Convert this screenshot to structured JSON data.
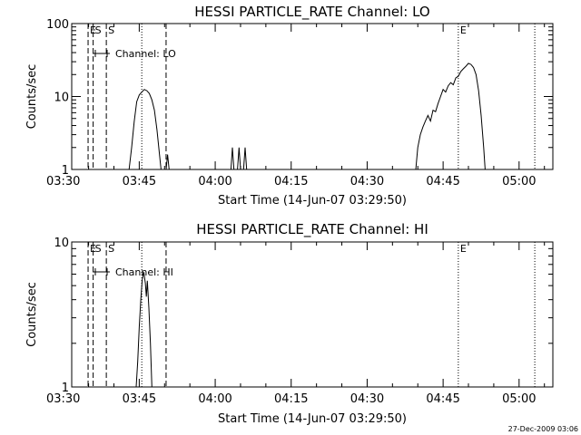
{
  "chart_data": [
    {
      "type": "line",
      "title": "HESSI PARTICLE_RATE Channel: LO",
      "xlabel": "Start Time (14-Jun-07 03:29:50)",
      "ylabel": "Counts/sec",
      "yscale": "log",
      "ylim": [
        1,
        100
      ],
      "y_tick_labels": [
        "1",
        "10",
        "100"
      ],
      "xlim": [
        1.667,
        96.667
      ],
      "x_tick_labels": [
        "03:30",
        "03:45",
        "04:00",
        "04:15",
        "04:30",
        "04:45",
        "05:00"
      ],
      "x_tick_values": [
        0,
        15,
        30,
        45,
        60,
        75,
        90
      ],
      "grid": false,
      "legend": {
        "label": "Channel: LO",
        "position": "top-left"
      },
      "markers": [
        {
          "label": "E",
          "x": 4.9,
          "style": "dashed"
        },
        {
          "label": "S",
          "x": 5.9,
          "style": "dashed"
        },
        {
          "label": "S",
          "x": 8.5,
          "style": "dashed"
        },
        {
          "label": "",
          "x": 20.3,
          "style": "dashed"
        },
        {
          "label": "",
          "x": 15.5,
          "style": "dotted"
        },
        {
          "label": "E",
          "x": 78.0,
          "style": "dotted"
        },
        {
          "label": "",
          "x": 93.1,
          "style": "dotted"
        }
      ],
      "series": [
        {
          "segments": [
            [
              [
                13.0,
                1.0
              ],
              [
                13.5,
                2.0
              ],
              [
                14.0,
                4.5
              ],
              [
                14.5,
                8.5
              ],
              [
                15.0,
                10.5
              ],
              [
                15.5,
                11.5
              ],
              [
                16.0,
                12.5
              ],
              [
                16.5,
                12.0
              ],
              [
                17.0,
                11.0
              ],
              [
                17.5,
                9.0
              ],
              [
                18.0,
                6.5
              ],
              [
                18.5,
                3.5
              ],
              [
                19.0,
                1.6
              ],
              [
                19.3,
                1.0
              ]
            ],
            [
              [
                20.3,
                1.0
              ],
              [
                20.6,
                1.6
              ],
              [
                20.9,
                1.0
              ]
            ],
            [
              [
                33.1,
                1.0
              ],
              [
                33.4,
                2.0
              ],
              [
                33.7,
                1.0
              ]
            ],
            [
              [
                34.4,
                1.0
              ],
              [
                34.7,
                2.0
              ],
              [
                35.0,
                1.0
              ]
            ],
            [
              [
                35.6,
                1.0
              ],
              [
                35.9,
                2.0
              ],
              [
                36.2,
                1.0
              ]
            ],
            [
              [
                69.6,
                1.0
              ],
              [
                70.0,
                2.0
              ],
              [
                70.5,
                3.0
              ],
              [
                71.0,
                3.8
              ],
              [
                71.5,
                4.6
              ],
              [
                72.0,
                5.5
              ],
              [
                72.5,
                4.6
              ],
              [
                73.0,
                6.5
              ],
              [
                73.5,
                6.2
              ],
              [
                74.0,
                8.0
              ],
              [
                74.5,
                10.0
              ],
              [
                75.0,
                12.5
              ],
              [
                75.5,
                11.5
              ],
              [
                76.0,
                14.0
              ],
              [
                76.5,
                15.5
              ],
              [
                77.0,
                14.5
              ],
              [
                77.5,
                18.0
              ],
              [
                78.0,
                19.0
              ],
              [
                78.5,
                22.0
              ],
              [
                79.0,
                24.0
              ],
              [
                79.5,
                26.0
              ],
              [
                80.0,
                28.5
              ],
              [
                80.5,
                27.5
              ],
              [
                81.0,
                25.0
              ],
              [
                81.5,
                20.0
              ],
              [
                82.0,
                12.0
              ],
              [
                82.5,
                5.5
              ],
              [
                83.0,
                2.0
              ],
              [
                83.3,
                1.0
              ]
            ]
          ]
        }
      ]
    },
    {
      "type": "line",
      "title": "HESSI PARTICLE_RATE Channel: HI",
      "xlabel": "Start Time (14-Jun-07 03:29:50)",
      "ylabel": "Counts/sec",
      "yscale": "log",
      "ylim": [
        1,
        10
      ],
      "y_tick_labels": [
        "1",
        "10"
      ],
      "xlim": [
        1.667,
        96.667
      ],
      "x_tick_labels": [
        "03:30",
        "03:45",
        "04:00",
        "04:15",
        "04:30",
        "04:45",
        "05:00"
      ],
      "x_tick_values": [
        0,
        15,
        30,
        45,
        60,
        75,
        90
      ],
      "grid": false,
      "legend": {
        "label": "Channel: HI",
        "position": "top-left"
      },
      "markers": [
        {
          "label": "E",
          "x": 4.9,
          "style": "dashed"
        },
        {
          "label": "S",
          "x": 5.9,
          "style": "dashed"
        },
        {
          "label": "S",
          "x": 8.5,
          "style": "dashed"
        },
        {
          "label": "",
          "x": 20.3,
          "style": "dashed"
        },
        {
          "label": "",
          "x": 15.5,
          "style": "dotted"
        },
        {
          "label": "E",
          "x": 78.0,
          "style": "dotted"
        },
        {
          "label": "",
          "x": 93.1,
          "style": "dotted"
        }
      ],
      "series": [
        {
          "segments": [
            [
              [
                14.4,
                1.0
              ],
              [
                14.7,
                1.5
              ],
              [
                15.0,
                2.6
              ],
              [
                15.3,
                4.0
              ],
              [
                15.6,
                5.5
              ],
              [
                15.9,
                6.2
              ],
              [
                16.2,
                5.2
              ],
              [
                16.4,
                4.2
              ],
              [
                16.6,
                5.4
              ],
              [
                16.9,
                3.5
              ],
              [
                17.2,
                2.0
              ],
              [
                17.5,
                1.0
              ]
            ]
          ]
        }
      ]
    }
  ],
  "timestamp": "27-Dec-2009 03:06"
}
